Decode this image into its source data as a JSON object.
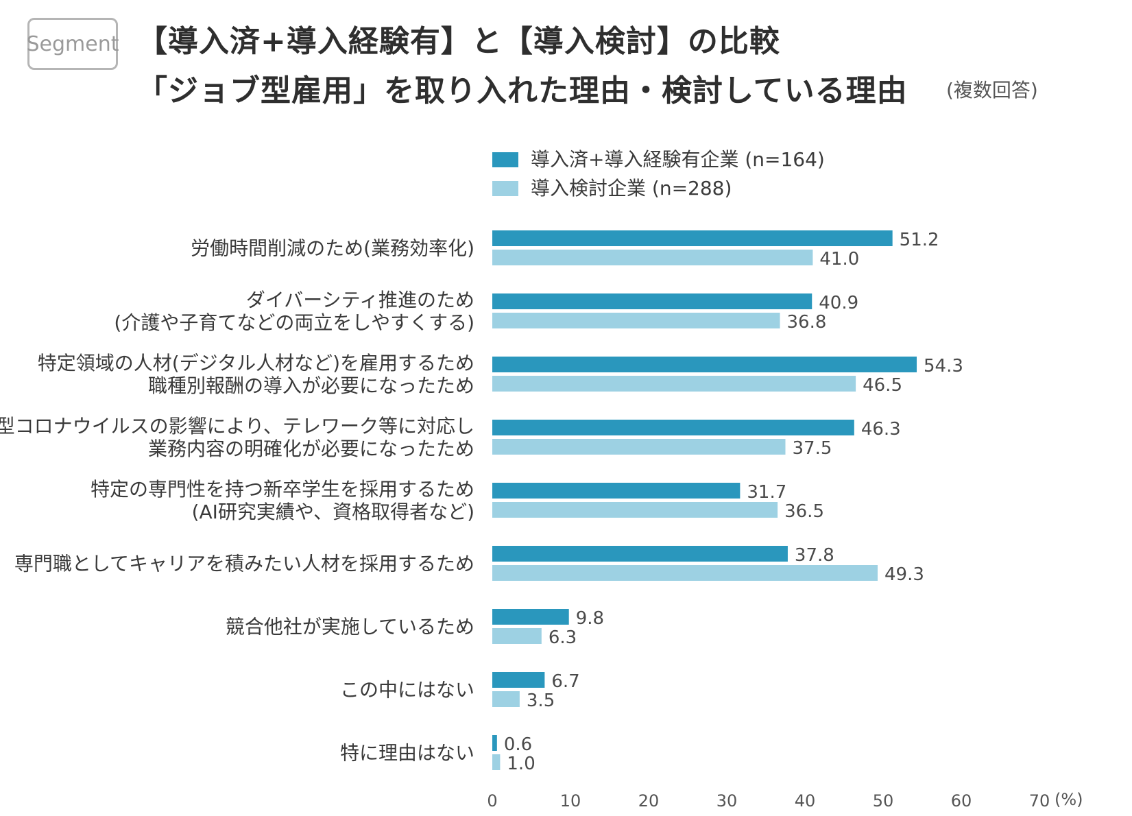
{
  "badge": "Segment",
  "title_line1": "【導入済+導入経験有】と【導入検討】の比較",
  "title_line2": "「ジョブ型雇用」を取り入れた理由・検討している理由",
  "note": "(複数回答)",
  "colors": {
    "series1": "#2a97bd",
    "series2": "#9dd1e3"
  },
  "chart_data": {
    "type": "bar",
    "orientation": "horizontal",
    "unit_label": "(%)",
    "xlim": [
      0,
      70
    ],
    "xticks": [
      0,
      10,
      20,
      30,
      40,
      50,
      60,
      70
    ],
    "xtick_labels": [
      "0",
      "10",
      "20",
      "30",
      "40",
      "50",
      "60",
      "70"
    ],
    "categories": [
      [
        "労働時間削減のため(業務効率化)"
      ],
      [
        "ダイバーシティ推進のため",
        "(介護や子育てなどの両立をしやすくする)"
      ],
      [
        "特定領域の人材(デジタル人材など)を雇用するため",
        "職種別報酬の導入が必要になったため"
      ],
      [
        "新型コロナウイルスの影響により、テレワーク等に対応し",
        "業務内容の明確化が必要になったため"
      ],
      [
        "特定の専門性を持つ新卒学生を採用するため",
        "(AI研究実績や、資格取得者など)"
      ],
      [
        "専門職としてキャリアを積みたい人材を採用するため"
      ],
      [
        "競合他社が実施しているため"
      ],
      [
        "この中にはない"
      ],
      [
        "特に理由はない"
      ]
    ],
    "series": [
      {
        "name": "導入済+導入経験有企業 (n=164)",
        "values": [
          51.2,
          40.9,
          54.3,
          46.3,
          31.7,
          37.8,
          9.8,
          6.7,
          0.6
        ],
        "labels": [
          "51.2",
          "40.9",
          "54.3",
          "46.3",
          "31.7",
          "37.8",
          "9.8",
          "6.7",
          "0.6"
        ]
      },
      {
        "name": "導入検討企業 (n=288)",
        "values": [
          41.0,
          36.8,
          46.5,
          37.5,
          36.5,
          49.3,
          6.3,
          3.5,
          1.0
        ],
        "labels": [
          "41.0",
          "36.8",
          "46.5",
          "37.5",
          "36.5",
          "49.3",
          "6.3",
          "3.5",
          "1.0"
        ]
      }
    ]
  }
}
